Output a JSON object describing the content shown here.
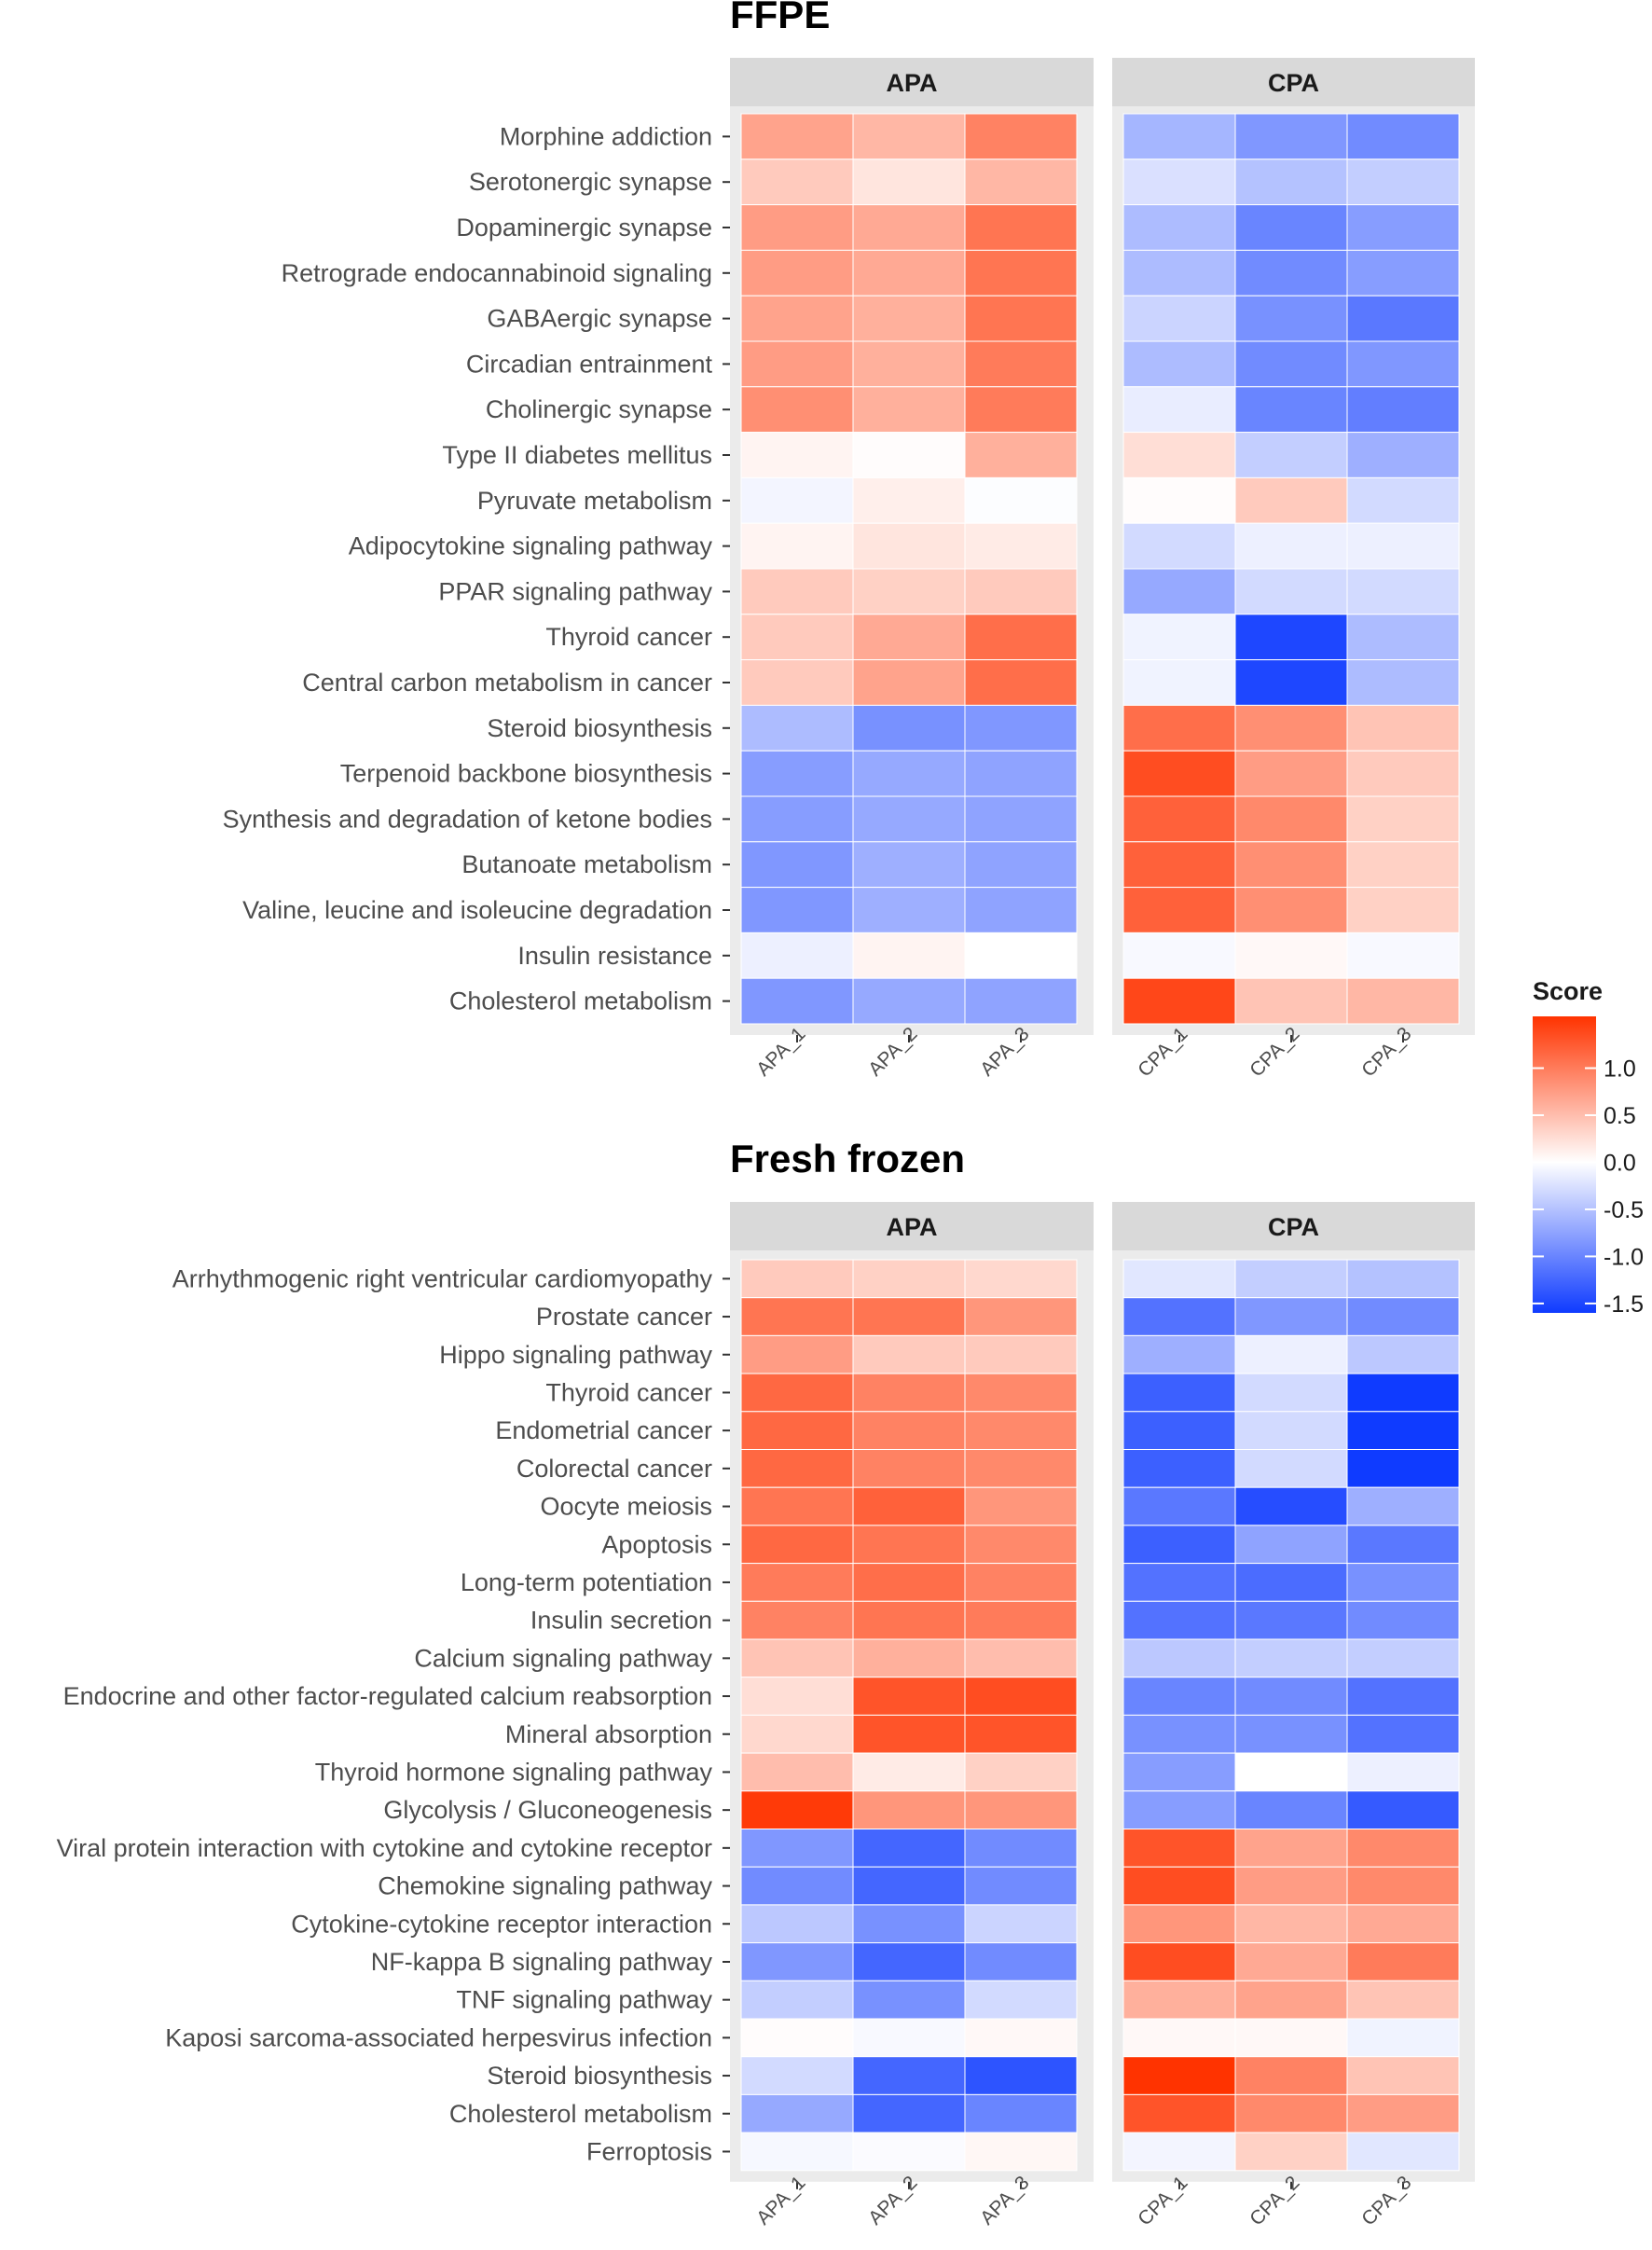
{
  "chart_data": [
    {
      "type": "heatmap",
      "title": "FFPE",
      "groups": [
        "APA",
        "CPA"
      ],
      "columns": {
        "APA": [
          "APA_1",
          "APA_2",
          "APA_3"
        ],
        "CPA": [
          "CPA_1",
          "CPA_2",
          "CPA_3"
        ]
      },
      "rows": [
        "Morphine addiction",
        "Serotonergic synapse",
        "Dopaminergic synapse",
        "Retrograde endocannabinoid signaling",
        "GABAergic synapse",
        "Circadian entrainment",
        "Cholinergic synapse",
        "Type II diabetes mellitus",
        "Pyruvate metabolism",
        "Adipocytokine signaling pathway",
        "PPAR signaling pathway",
        "Thyroid cancer",
        "Central carbon metabolism in cancer",
        "Steroid biosynthesis",
        "Terpenoid backbone biosynthesis",
        "Synthesis and degradation of ketone bodies",
        "Butanoate metabolism",
        "Valine, leucine and isoleucine degradation",
        "Insulin resistance",
        "Cholesterol metabolism"
      ],
      "values": [
        [
          0.7,
          0.55,
          0.95,
          -0.6,
          -0.85,
          -0.95
        ],
        [
          0.4,
          0.2,
          0.55,
          -0.25,
          -0.5,
          -0.4
        ],
        [
          0.75,
          0.65,
          1.05,
          -0.55,
          -1.0,
          -0.8
        ],
        [
          0.75,
          0.65,
          1.05,
          -0.55,
          -0.95,
          -0.8
        ],
        [
          0.7,
          0.6,
          1.05,
          -0.35,
          -0.9,
          -1.1
        ],
        [
          0.75,
          0.6,
          1.0,
          -0.55,
          -0.95,
          -0.85
        ],
        [
          0.85,
          0.6,
          1.0,
          -0.15,
          -1.0,
          -1.05
        ],
        [
          0.08,
          0.02,
          0.6,
          0.25,
          -0.4,
          -0.65
        ],
        [
          -0.08,
          0.12,
          -0.02,
          0.02,
          0.4,
          -0.3
        ],
        [
          0.08,
          0.2,
          0.15,
          -0.3,
          -0.12,
          -0.12
        ],
        [
          0.4,
          0.35,
          0.4,
          -0.7,
          -0.3,
          -0.3
        ],
        [
          0.4,
          0.65,
          1.1,
          -0.1,
          -1.5,
          -0.55
        ],
        [
          0.4,
          0.7,
          1.1,
          -0.1,
          -1.5,
          -0.55
        ],
        [
          -0.55,
          -0.9,
          -0.85,
          1.1,
          0.85,
          0.45
        ],
        [
          -0.8,
          -0.7,
          -0.75,
          1.35,
          0.75,
          0.4
        ],
        [
          -0.8,
          -0.7,
          -0.75,
          1.2,
          0.9,
          0.35
        ],
        [
          -0.85,
          -0.65,
          -0.75,
          1.2,
          0.85,
          0.35
        ],
        [
          -0.85,
          -0.65,
          -0.75,
          1.2,
          0.85,
          0.35
        ],
        [
          -0.12,
          0.08,
          0.0,
          -0.05,
          0.05,
          -0.05
        ],
        [
          -0.85,
          -0.7,
          -0.75,
          1.4,
          0.45,
          0.55
        ]
      ]
    },
    {
      "type": "heatmap",
      "title": "Fresh frozen",
      "groups": [
        "APA",
        "CPA"
      ],
      "columns": {
        "APA": [
          "APA_1",
          "APA_2",
          "APA_3"
        ],
        "CPA": [
          "CPA_1",
          "CPA_2",
          "CPA_3"
        ]
      },
      "rows": [
        "Arrhythmogenic right ventricular cardiomyopathy",
        "Prostate cancer",
        "Hippo signaling pathway",
        "Thyroid cancer",
        "Endometrial cancer",
        "Colorectal cancer",
        "Oocyte meiosis",
        "Apoptosis",
        "Long-term potentiation",
        "Insulin secretion",
        "Calcium signaling pathway",
        "Endocrine and other factor-regulated calcium reabsorption",
        "Mineral absorption",
        "Thyroid hormone signaling pathway",
        "Glycolysis / Gluconeogenesis",
        "Viral protein interaction with cytokine and cytokine receptor",
        "Chemokine signaling pathway",
        "Cytokine-cytokine receptor interaction",
        "NF-kappa B signaling pathway",
        "TNF signaling pathway",
        "Kaposi sarcoma-associated herpesvirus infection",
        "Steroid biosynthesis",
        "Cholesterol metabolism",
        "Ferroptosis"
      ],
      "values": [
        [
          0.4,
          0.35,
          0.3,
          -0.2,
          -0.4,
          -0.5
        ],
        [
          1.05,
          1.05,
          0.8,
          -1.15,
          -0.85,
          -0.95
        ],
        [
          0.75,
          0.4,
          0.4,
          -0.65,
          -0.12,
          -0.45
        ],
        [
          1.15,
          0.95,
          0.9,
          -1.3,
          -0.3,
          -1.6
        ],
        [
          1.15,
          0.95,
          0.9,
          -1.3,
          -0.3,
          -1.6
        ],
        [
          1.15,
          0.95,
          0.9,
          -1.3,
          -0.3,
          -1.6
        ],
        [
          1.05,
          1.2,
          0.8,
          -1.1,
          -1.45,
          -0.65
        ],
        [
          1.15,
          1.05,
          0.9,
          -1.3,
          -0.75,
          -1.1
        ],
        [
          1.0,
          1.1,
          0.95,
          -1.15,
          -1.2,
          -0.9
        ],
        [
          0.95,
          1.05,
          1.0,
          -1.15,
          -1.1,
          -0.95
        ],
        [
          0.45,
          0.6,
          0.5,
          -0.45,
          -0.4,
          -0.4
        ],
        [
          0.25,
          1.3,
          1.35,
          -1.0,
          -0.95,
          -1.15
        ],
        [
          0.3,
          1.3,
          1.3,
          -0.9,
          -0.9,
          -1.15
        ],
        [
          0.5,
          0.15,
          0.35,
          -0.8,
          0.0,
          -0.12
        ],
        [
          1.5,
          0.8,
          0.8,
          -0.8,
          -1.0,
          -1.35
        ],
        [
          -0.85,
          -1.25,
          -0.95,
          1.3,
          0.7,
          0.9
        ],
        [
          -0.95,
          -1.25,
          -0.95,
          1.35,
          0.75,
          0.9
        ],
        [
          -0.45,
          -0.9,
          -0.35,
          0.8,
          0.55,
          0.65
        ],
        [
          -0.85,
          -1.25,
          -0.95,
          1.35,
          0.65,
          1.0
        ],
        [
          -0.4,
          -0.9,
          -0.3,
          0.6,
          0.7,
          0.45
        ],
        [
          0.02,
          -0.05,
          0.05,
          0.05,
          0.05,
          -0.1
        ],
        [
          -0.3,
          -1.25,
          -1.4,
          1.55,
          0.95,
          0.45
        ],
        [
          -0.7,
          -1.25,
          -1.0,
          1.3,
          0.9,
          0.75
        ],
        [
          -0.06,
          -0.03,
          0.06,
          -0.08,
          0.35,
          -0.2
        ]
      ]
    }
  ],
  "legend": {
    "title": "Score",
    "ticks": [
      1.0,
      0.5,
      0.0,
      -0.5,
      -1.0,
      -1.5
    ],
    "tick_labels": [
      "1.0",
      "0.5",
      "0.0",
      "-0.5",
      "-1.0",
      "-1.5"
    ],
    "range": [
      -1.6,
      1.55
    ],
    "colors": {
      "high": "#FF3300",
      "mid": "#FFFFFF",
      "low": "#0F3BFF"
    }
  },
  "style": {
    "panel_bg": "#EBEBEB",
    "strip_bg": "#D9D9D9"
  }
}
